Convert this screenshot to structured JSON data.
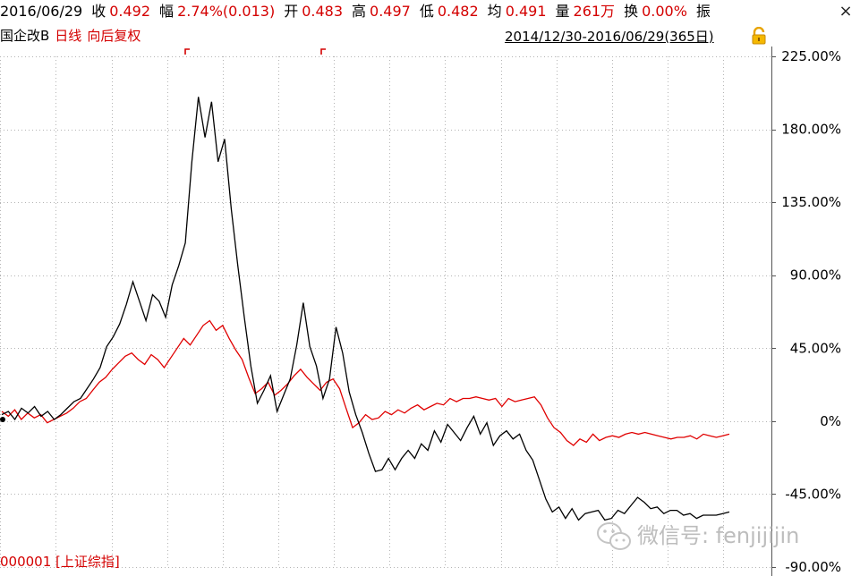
{
  "header": {
    "items": [
      {
        "label": "",
        "value": "2016/06/29"
      },
      {
        "label": "收",
        "value": "0.492"
      },
      {
        "label": "幅",
        "value": "2.74%(0.013)"
      },
      {
        "label": "开",
        "value": "0.483"
      },
      {
        "label": "高",
        "value": "0.497"
      },
      {
        "label": "低",
        "value": "0.482"
      },
      {
        "label": "均",
        "value": "0.491"
      },
      {
        "label": "量",
        "value": "261万"
      },
      {
        "label": "换",
        "value": "0.00%"
      },
      {
        "label": "振",
        "value": ""
      }
    ],
    "close_symbol": "×"
  },
  "subheader": {
    "name": "国企改B",
    "period": "日线",
    "adjust": "向后复权",
    "range": "2014/12/30-2016/06/29(365日)"
  },
  "bottom_code": "000001 [上证综指]",
  "watermark": "微信号: fenjijijin",
  "colors": {
    "series_main": "#000000",
    "series_index": "#e00000",
    "grid": "#b4b4b4",
    "label_red": "#d40000"
  },
  "icons": [
    "close-icon",
    "lock-icon",
    "wechat-icon"
  ],
  "chart_data": {
    "type": "line",
    "title": "",
    "xlabel": "",
    "ylabel": "",
    "x_range": [
      "2014/12/30",
      "2016/06/29"
    ],
    "ylim": [
      -90,
      225
    ],
    "y_ticks": [
      225,
      180,
      135,
      90,
      45,
      0,
      -45,
      -90
    ],
    "y_tick_labels": [
      "225.00%",
      "180.00%",
      "135.00%",
      "90.00%",
      "45.00%",
      "0%",
      "-45.00%",
      "-90.00%"
    ],
    "grid": true,
    "series": [
      {
        "name": "国企改B",
        "color": "#000000",
        "values": [
          4,
          6,
          1,
          8,
          5,
          9,
          3,
          6,
          1,
          4,
          8,
          12,
          14,
          20,
          26,
          33,
          46,
          52,
          60,
          72,
          86,
          74,
          62,
          78,
          74,
          64,
          84,
          96,
          110,
          160,
          200,
          175,
          197,
          160,
          174,
          131,
          96,
          64,
          34,
          11,
          19,
          28,
          6,
          16,
          26,
          47,
          73,
          46,
          34,
          14,
          26,
          58,
          42,
          18,
          4,
          -7,
          -20,
          -31,
          -30,
          -23,
          -30,
          -23,
          -18,
          -23,
          -14,
          -18,
          -6,
          -13,
          -2,
          -7,
          -12,
          -4,
          3,
          -8,
          -1,
          -15,
          -9,
          -6,
          -11,
          -8,
          -18,
          -24,
          -36,
          -48,
          -56,
          -53,
          -60,
          -54,
          -61,
          -57,
          -56,
          -55,
          -61,
          -60,
          -55,
          -57,
          -52,
          -47,
          -50,
          -54,
          -53,
          -57,
          -55,
          -55,
          -58,
          -57,
          -60,
          -58,
          -58,
          -58,
          -57,
          -56
        ]
      },
      {
        "name": "000001 [上证综指]",
        "color": "#e00000",
        "values": [
          6,
          3,
          7,
          1,
          5,
          2,
          4,
          -1,
          1,
          3,
          5,
          8,
          12,
          14,
          19,
          24,
          27,
          32,
          36,
          40,
          42,
          38,
          35,
          41,
          38,
          33,
          39,
          45,
          51,
          47,
          53,
          59,
          62,
          56,
          59,
          51,
          44,
          38,
          27,
          17,
          20,
          24,
          16,
          19,
          23,
          28,
          32,
          27,
          23,
          19,
          24,
          26,
          20,
          8,
          -4,
          -1,
          4,
          1,
          2,
          6,
          4,
          7,
          5,
          8,
          10,
          7,
          9,
          11,
          10,
          14,
          12,
          14,
          14,
          15,
          14,
          13,
          14,
          9,
          14,
          12,
          13,
          14,
          15,
          10,
          2,
          -4,
          -7,
          -12,
          -15,
          -11,
          -13,
          -8,
          -12,
          -10,
          -9,
          -10,
          -8,
          -7,
          -8,
          -7,
          -8,
          -9,
          -10,
          -11,
          -10,
          -10,
          -9,
          -11,
          -8,
          -9,
          -10,
          -9,
          -8
        ]
      }
    ]
  }
}
